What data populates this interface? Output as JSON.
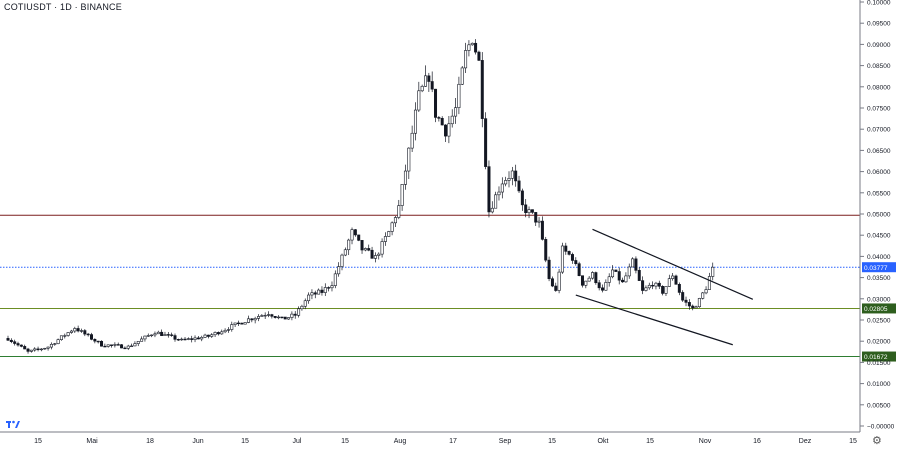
{
  "header": {
    "title": "COTIUSDT · 1D · BINANCE"
  },
  "chart_data": {
    "type": "candlestick",
    "title": "COTIUSDT · 1D · BINANCE",
    "y_ticks": [
      "0.10000",
      "0.09500",
      "0.09000",
      "0.08500",
      "0.08000",
      "0.07500",
      "0.07000",
      "0.06500",
      "0.06000",
      "0.05500",
      "0.05000",
      "0.04500",
      "0.04000",
      "0.03500",
      "0.03000",
      "0.02500",
      "0.02000",
      "0.01500",
      "0.01000",
      "0.00500",
      "−0.00000"
    ],
    "x_ticks": [
      "15",
      "Mai",
      "18",
      "Jun",
      "15",
      "Jul",
      "15",
      "Aug",
      "17",
      "Sep",
      "15",
      "Okt",
      "15",
      "Nov",
      "16",
      "Dez",
      "15"
    ],
    "horizontal_levels": [
      {
        "value": 0.05,
        "color": "#7b1f1f"
      },
      {
        "value": 0.03777,
        "color": "#2962ff",
        "dotted": true,
        "label": "0.03777"
      },
      {
        "value": 0.02805,
        "color": "#6b8e23",
        "label": "0.02805",
        "label_bg": "#2e5e1e"
      },
      {
        "value": 0.01672,
        "color": "#2e7d32",
        "label": "0.01672",
        "label_bg": "#2e5e1e"
      }
    ],
    "pattern": "falling wedge",
    "trendlines": [
      {
        "from": [
          175,
          0.0467
        ],
        "to": [
          223,
          0.0302
        ]
      },
      {
        "from": [
          170,
          0.0312
        ],
        "to": [
          217,
          0.0195
        ]
      }
    ],
    "anchors": [
      [
        0,
        0.021
      ],
      [
        6,
        0.0178
      ],
      [
        12,
        0.019
      ],
      [
        20,
        0.0235
      ],
      [
        28,
        0.0195
      ],
      [
        36,
        0.019
      ],
      [
        44,
        0.0225
      ],
      [
        52,
        0.0205
      ],
      [
        60,
        0.0215
      ],
      [
        66,
        0.0235
      ],
      [
        72,
        0.0255
      ],
      [
        78,
        0.027
      ],
      [
        82,
        0.0255
      ],
      [
        86,
        0.0265
      ],
      [
        90,
        0.031
      ],
      [
        94,
        0.032
      ],
      [
        97,
        0.034
      ],
      [
        99,
        0.038
      ],
      [
        103,
        0.046
      ],
      [
        106,
        0.042
      ],
      [
        110,
        0.04
      ],
      [
        114,
        0.046
      ],
      [
        117,
        0.052
      ],
      [
        120,
        0.065
      ],
      [
        123,
        0.078
      ],
      [
        126,
        0.083
      ],
      [
        128,
        0.074
      ],
      [
        131,
        0.07
      ],
      [
        134,
        0.075
      ],
      [
        137,
        0.088
      ],
      [
        139,
        0.092
      ],
      [
        141,
        0.086
      ],
      [
        144,
        0.051
      ],
      [
        148,
        0.058
      ],
      [
        151,
        0.06
      ],
      [
        154,
        0.052
      ],
      [
        157,
        0.05
      ],
      [
        159,
        0.048
      ],
      [
        162,
        0.035
      ],
      [
        164,
        0.032
      ],
      [
        166,
        0.042
      ],
      [
        169,
        0.04
      ],
      [
        172,
        0.034
      ],
      [
        175,
        0.036
      ],
      [
        178,
        0.032
      ],
      [
        181,
        0.037
      ],
      [
        184,
        0.034
      ],
      [
        187,
        0.039
      ],
      [
        190,
        0.032
      ],
      [
        193,
        0.034
      ],
      [
        196,
        0.032
      ],
      [
        199,
        0.036
      ],
      [
        202,
        0.03
      ],
      [
        205,
        0.028
      ],
      [
        207,
        0.03
      ],
      [
        209,
        0.033
      ],
      [
        211,
        0.0378
      ]
    ]
  }
}
